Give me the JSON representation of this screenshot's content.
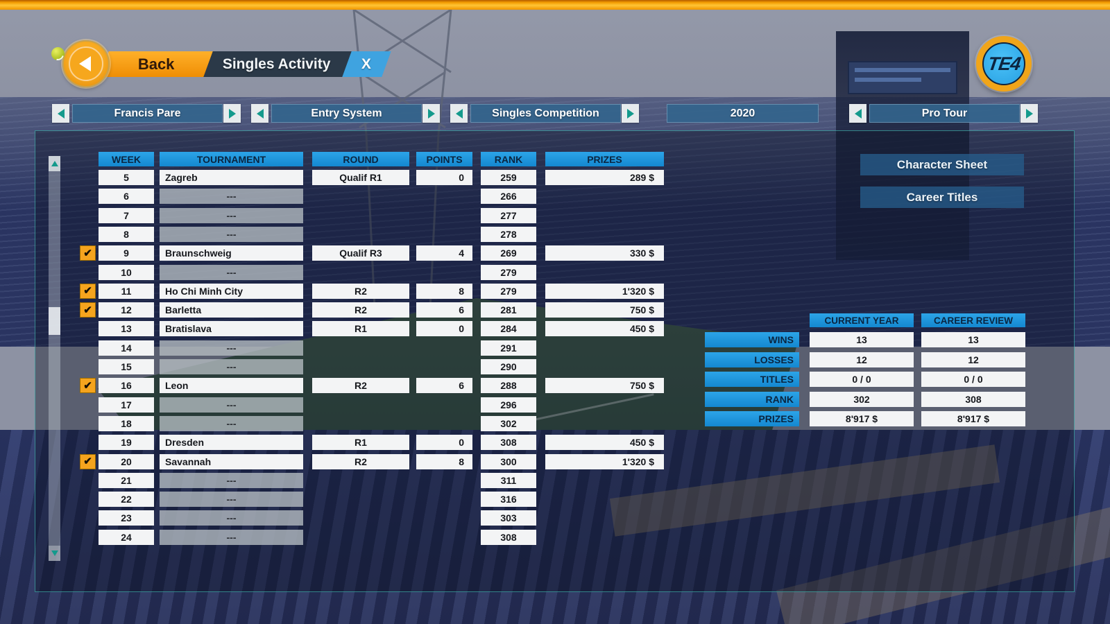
{
  "header": {
    "back_label": "Back",
    "title": "Singles Activity",
    "close_label": "X",
    "logo_text": "TE4"
  },
  "nav": {
    "player": "Francis Pare",
    "entry": "Entry System",
    "competition": "Singles Competition",
    "year": "2020",
    "tour": "Pro Tour"
  },
  "table": {
    "headers": {
      "week": "WEEK",
      "tournament": "TOURNAMENT",
      "round": "ROUND",
      "points": "POINTS",
      "rank": "RANK",
      "prizes": "PRIZES"
    },
    "empty_marker": "---",
    "check_glyph": "✔",
    "rows": [
      {
        "week": "5",
        "tournament": "Zagreb",
        "round": "Qualif R1",
        "points": "0",
        "rank": "259",
        "prizes": "289 $",
        "checked": false,
        "played": true
      },
      {
        "week": "6",
        "rank": "266",
        "played": false,
        "checked": false
      },
      {
        "week": "7",
        "rank": "277",
        "played": false,
        "checked": false
      },
      {
        "week": "8",
        "rank": "278",
        "played": false,
        "checked": false
      },
      {
        "week": "9",
        "tournament": "Braunschweig",
        "round": "Qualif R3",
        "points": "4",
        "rank": "269",
        "prizes": "330 $",
        "checked": true,
        "played": true
      },
      {
        "week": "10",
        "rank": "279",
        "played": false,
        "checked": false
      },
      {
        "week": "11",
        "tournament": "Ho Chi Minh City",
        "round": "R2",
        "points": "8",
        "rank": "279",
        "prizes": "1'320 $",
        "checked": true,
        "played": true
      },
      {
        "week": "12",
        "tournament": "Barletta",
        "round": "R2",
        "points": "6",
        "rank": "281",
        "prizes": "750 $",
        "checked": true,
        "played": true
      },
      {
        "week": "13",
        "tournament": "Bratislava",
        "round": "R1",
        "points": "0",
        "rank": "284",
        "prizes": "450 $",
        "checked": false,
        "played": true
      },
      {
        "week": "14",
        "rank": "291",
        "played": false,
        "checked": false
      },
      {
        "week": "15",
        "rank": "290",
        "played": false,
        "checked": false
      },
      {
        "week": "16",
        "tournament": "Leon",
        "round": "R2",
        "points": "6",
        "rank": "288",
        "prizes": "750 $",
        "checked": true,
        "played": true
      },
      {
        "week": "17",
        "rank": "296",
        "played": false,
        "checked": false
      },
      {
        "week": "18",
        "rank": "302",
        "played": false,
        "checked": false
      },
      {
        "week": "19",
        "tournament": "Dresden",
        "round": "R1",
        "points": "0",
        "rank": "308",
        "prizes": "450 $",
        "checked": false,
        "played": true
      },
      {
        "week": "20",
        "tournament": "Savannah",
        "round": "R2",
        "points": "8",
        "rank": "300",
        "prizes": "1'320 $",
        "checked": true,
        "played": true
      },
      {
        "week": "21",
        "rank": "311",
        "played": false,
        "checked": false
      },
      {
        "week": "22",
        "rank": "316",
        "played": false,
        "checked": false
      },
      {
        "week": "23",
        "rank": "303",
        "played": false,
        "checked": false
      },
      {
        "week": "24",
        "rank": "308",
        "played": false,
        "checked": false
      }
    ]
  },
  "side_buttons": {
    "character_sheet": "Character Sheet",
    "career_titles": "Career Titles"
  },
  "stats": {
    "columns": {
      "current": "CURRENT YEAR",
      "career": "CAREER REVIEW"
    },
    "rows": [
      {
        "label": "WINS",
        "current": "13",
        "career": "13"
      },
      {
        "label": "LOSSES",
        "current": "12",
        "career": "12"
      },
      {
        "label": "TITLES",
        "current": "0 / 0",
        "career": "0 / 0"
      },
      {
        "label": "RANK",
        "current": "302",
        "career": "308"
      },
      {
        "label": "PRIZES",
        "current": "8'917 $",
        "career": "8'917 $"
      }
    ]
  },
  "colors": {
    "accent_orange": "#f5a21c",
    "header_blue": "#1d9be2",
    "teal": "#149a8c",
    "tab_dark": "#2c3b4b",
    "tab_blue": "#3fa3e0",
    "nav_bar": "#33648c"
  }
}
